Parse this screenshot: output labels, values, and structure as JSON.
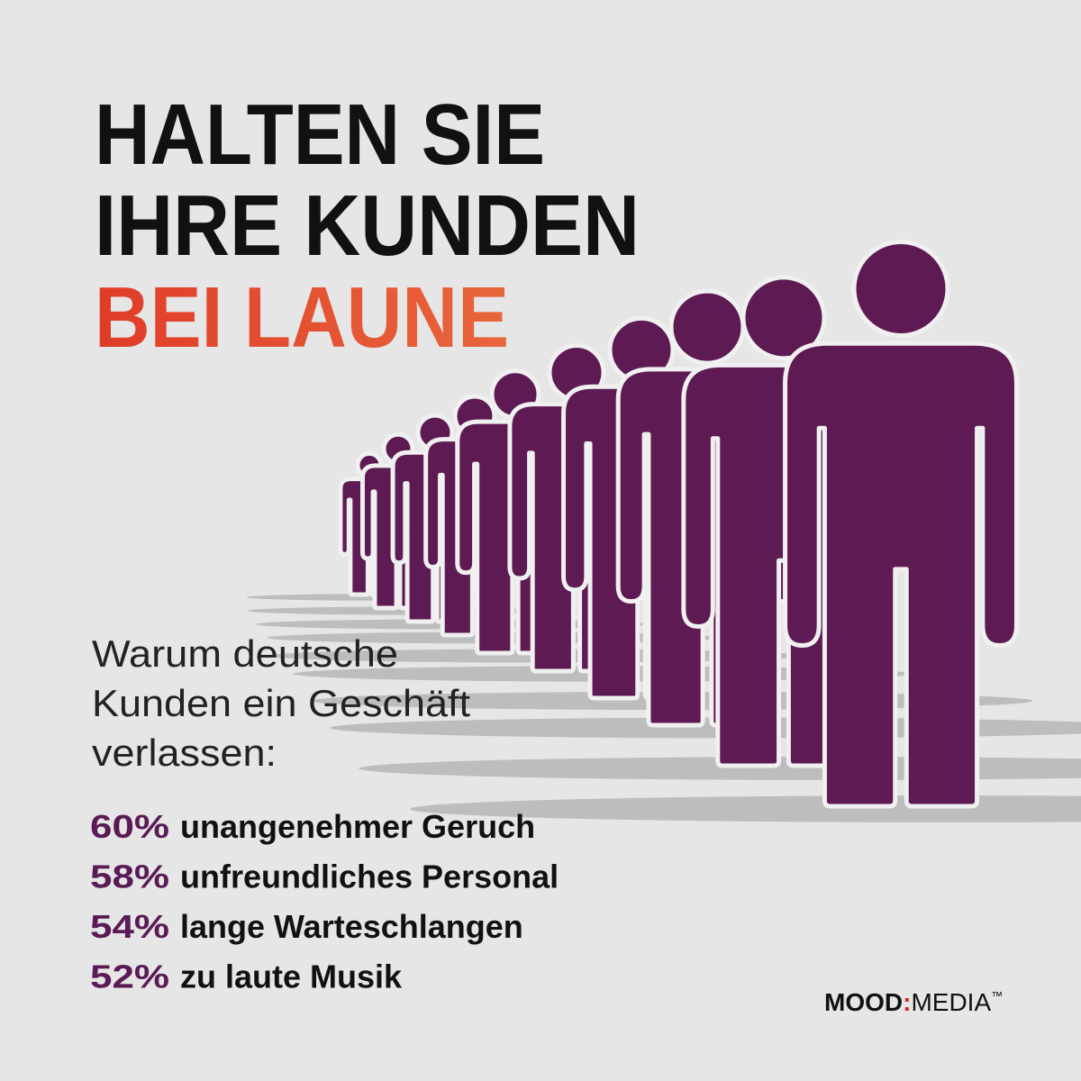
{
  "title": {
    "lines": [
      "HALTEN SIE",
      "IHRE KUNDEN"
    ],
    "highlight": "BEI LAUNE"
  },
  "intro": {
    "lines": [
      "Warum deutsche",
      "Kunden ein Geschäft",
      "verlassen:"
    ]
  },
  "reasons": [
    {
      "percent": "60%",
      "text": "unangenehmer Geruch"
    },
    {
      "percent": "58%",
      "text": "unfreundliches Personal"
    },
    {
      "percent": "54%",
      "text": "lange Warteschlangen"
    },
    {
      "percent": "52%",
      "text": "zu laute Musik"
    }
  ],
  "logo": {
    "left": "MOOD",
    "separator": ":",
    "right": "MEDIA",
    "mark": "™"
  }
}
